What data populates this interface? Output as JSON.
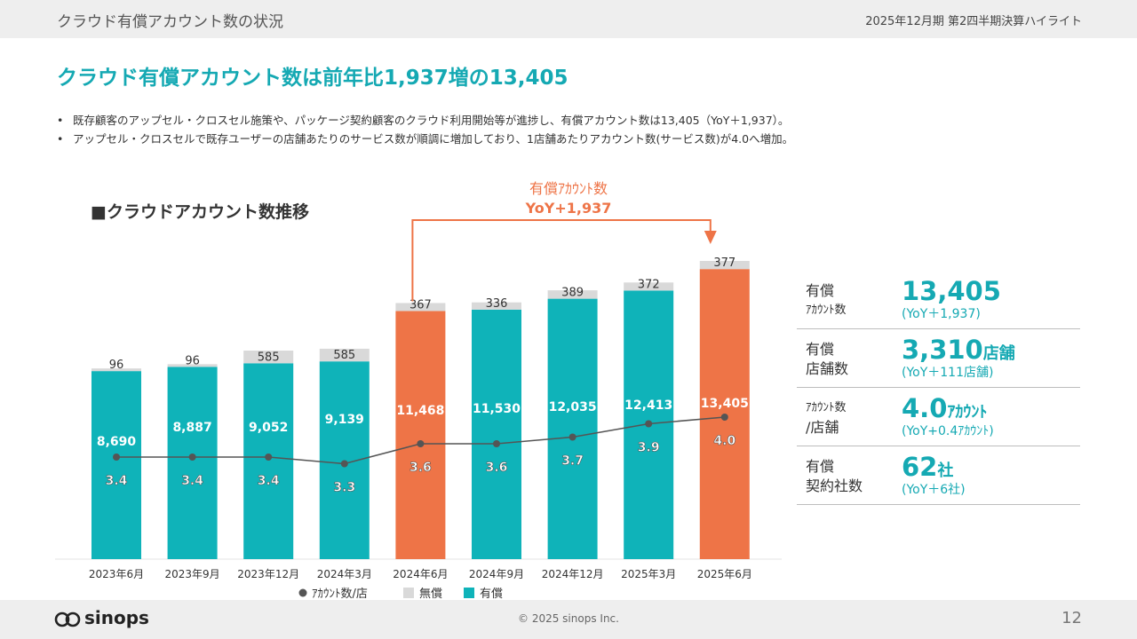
{
  "header": {
    "title": "クラウド有償アカウント数の状況",
    "period": "2025年12月期 第2四半期決算ハイライト"
  },
  "headline": "クラウド有償アカウント数は前年比1,937増の13,405",
  "bullets": [
    "既存顧客のアップセル・クロスセル施策や、パッケージ契約顧客のクラウド利用開始等が進捗し、有償アカウント数は13,405（YoY＋1,937）。",
    "アップセル・クロスセルで既存ユーザーの店舗あたりのサービス数が順調に増加しており、1店舗あたりアカウント数(サービス数)が4.0へ増加。"
  ],
  "chart_data": {
    "type": "bar",
    "title": "■クラウドアカウント数推移",
    "categories": [
      "2023年6月",
      "2023年9月",
      "2023年12月",
      "2024年3月",
      "2024年6月",
      "2024年9月",
      "2024年12月",
      "2025年3月",
      "2025年6月"
    ],
    "series": [
      {
        "name": "有償",
        "values": [
          8690,
          8887,
          9052,
          9139,
          11468,
          11530,
          12035,
          12413,
          13405
        ]
      },
      {
        "name": "無償",
        "values": [
          96,
          96,
          585,
          585,
          367,
          336,
          389,
          372,
          377
        ]
      },
      {
        "name": "ｱｶｳﾝﾄ数/店",
        "type": "line",
        "values": [
          3.4,
          3.4,
          3.4,
          3.3,
          3.6,
          3.6,
          3.7,
          3.9,
          4.0
        ]
      }
    ],
    "paid_labels": [
      "8,690",
      "8,887",
      "9,052",
      "9,139",
      "11,468",
      "11,530",
      "12,035",
      "12,413",
      "13,405"
    ],
    "free_labels": [
      "96",
      "96",
      "585",
      "585",
      "367",
      "336",
      "389",
      "372",
      "377"
    ],
    "ratio_labels": [
      "3.4",
      "3.4",
      "3.4",
      "3.3",
      "3.6",
      "3.6",
      "3.7",
      "3.9",
      "4.0"
    ],
    "highlighted": [
      "2024年6月",
      "2025年6月"
    ],
    "legend": [
      "ｱｶｳﾝﾄ数/店",
      "無償",
      "有償"
    ],
    "legend_position": "bottom",
    "grid": false,
    "annotation": {
      "label": "有償ｱｶｳﾝﾄ数",
      "value": "YoY+1,937",
      "from": "2024年6月",
      "to": "2025年6月"
    },
    "colors": {
      "paid": "#0fb3b9",
      "highlight": "#ee7447",
      "free": "#d9d9d9",
      "line": "#555555"
    }
  },
  "kpis": [
    {
      "label1": "有償",
      "label2": "ｱｶｳﾝﾄ数",
      "value": "13,405",
      "unit": "",
      "sub": "(YoY＋1,937)"
    },
    {
      "label1": "有償",
      "label2": "店舗数",
      "value": "3,310",
      "unit": "店舗",
      "sub": "(YoY＋111店舗)"
    },
    {
      "label1": "ｱｶｳﾝﾄ数",
      "label2": "/店舗",
      "value": "4.0",
      "unit": "ｱｶｳﾝﾄ",
      "sub": "(YoY+0.4ｱｶｳﾝﾄ)"
    },
    {
      "label1": "有償",
      "label2": "契約社数",
      "value": "62",
      "unit": "社",
      "sub": "(YoY＋6社)"
    }
  ],
  "footer": {
    "logo_text": "sinops",
    "copyright": "© 2025 sinops Inc.",
    "page": "12"
  },
  "colors": {
    "accent": "#15a9b3",
    "orange": "#ee7447",
    "header_bg": "#eeeeee"
  }
}
